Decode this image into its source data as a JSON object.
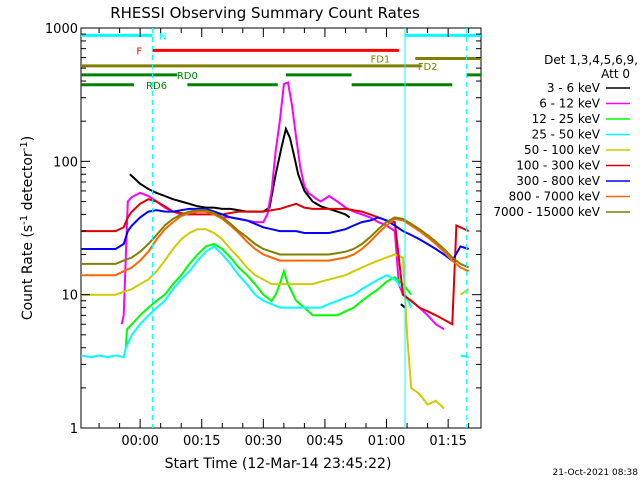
{
  "chart_data": {
    "type": "line",
    "title": "RHESSI Observing Summary Count Rates",
    "xlabel": "Start Time (12-Mar-14 23:45:22)",
    "ylabel_main": "Count Rate (s",
    "ylabel_sup": "-1",
    "ylabel_tail": " detector",
    "ylabel_close": ")",
    "x_range_minutes": [
      -14.4,
      83.0
    ],
    "ylim": [
      1,
      1000
    ],
    "y_scale": "log",
    "x_ticks": [
      {
        "label": "00:00",
        "minute": 0
      },
      {
        "label": "00:15",
        "minute": 15
      },
      {
        "label": "00:30",
        "minute": 30
      },
      {
        "label": "00:45",
        "minute": 45
      },
      {
        "label": "01:00",
        "minute": 60
      },
      {
        "label": "01:15",
        "minute": 75
      }
    ],
    "y_ticks": [
      {
        "label": "1",
        "value": 1
      },
      {
        "label": "10",
        "value": 10
      },
      {
        "label": "100",
        "value": 100
      },
      {
        "label": "1000",
        "value": 1000
      }
    ],
    "legend": {
      "header1": "Det 1,3,4,5,6,9,",
      "header2": "Att 0",
      "entries": [
        {
          "label": "3 - 6 keV",
          "color": "#000000"
        },
        {
          "label": "6 - 12 keV",
          "color": "#ff00ff"
        },
        {
          "label": "12 - 25 keV",
          "color": "#00ff00"
        },
        {
          "label": "25 - 50 keV",
          "color": "#00ffff"
        },
        {
          "label": "50 - 100 keV",
          "color": "#cccc00"
        },
        {
          "label": "100 - 300 keV",
          "color": "#dd0000"
        },
        {
          "label": "300 - 800 keV",
          "color": "#0000ff"
        },
        {
          "label": "800 - 7000 keV",
          "color": "#ff6600"
        },
        {
          "label": "7000 - 15000 keV",
          "color": "#808000"
        }
      ]
    },
    "series": [
      {
        "name": "3 - 6 keV",
        "color": "#000000",
        "x": [
          -3.2,
          -2.5,
          -1.5,
          0,
          2,
          4,
          6,
          8,
          10,
          12,
          14,
          16,
          18,
          20,
          22,
          24,
          26,
          28,
          30,
          31.5,
          33,
          34.5,
          35.5,
          36.5,
          37.5,
          38.5,
          40,
          42,
          44,
          46,
          48,
          50,
          51
        ],
        "y": [
          null,
          80,
          75,
          68,
          62,
          58,
          55,
          52,
          50,
          48,
          46,
          45,
          45,
          44,
          44,
          43,
          42,
          42,
          42,
          45,
          80,
          130,
          175,
          150,
          110,
          80,
          60,
          50,
          46,
          44,
          42,
          40,
          38
        ]
      },
      {
        "name": "3 - 6 keV (late)",
        "color": "#000000",
        "x": [
          62.5,
          63.5,
          64.5
        ],
        "y": [
          null,
          8.5,
          8
        ]
      },
      {
        "name": "6 - 12 keV",
        "color": "#ff00ff",
        "x": [
          -12,
          -10,
          -8,
          -6,
          -4.5,
          -4,
          -3,
          -2,
          0,
          2,
          4,
          6,
          8,
          10,
          12,
          14,
          16,
          18,
          20,
          22,
          24,
          26,
          28,
          30,
          31,
          32,
          33,
          34,
          35,
          36,
          37,
          38,
          39,
          40,
          41,
          42,
          43,
          44,
          46,
          48,
          50,
          52,
          54,
          56,
          58,
          60,
          62,
          63,
          64,
          66,
          68,
          70,
          72,
          74
        ],
        "y": [
          null,
          null,
          null,
          null,
          6,
          7,
          50,
          54,
          58,
          55,
          50,
          45,
          42,
          40,
          40,
          42,
          42,
          40,
          38,
          38,
          37,
          36,
          35,
          35,
          40,
          60,
          120,
          200,
          380,
          390,
          260,
          150,
          90,
          65,
          58,
          55,
          52,
          50,
          55,
          50,
          45,
          42,
          40,
          38,
          35,
          33,
          30,
          12,
          10,
          9,
          8,
          7,
          6,
          5.5
        ]
      },
      {
        "name": "12 - 25 keV",
        "color": "#00ff00",
        "x": [
          -3.5,
          -3.2,
          -2,
          0,
          2,
          4,
          6,
          8,
          10,
          12,
          14,
          16,
          18,
          20,
          22,
          24,
          26,
          28,
          30,
          32,
          33,
          34,
          35,
          36,
          38,
          40,
          42,
          44,
          46,
          48,
          50,
          52,
          54,
          56,
          58,
          60,
          62,
          64,
          66
        ],
        "y": [
          4,
          5.5,
          6,
          7,
          8,
          9,
          10,
          12,
          14,
          17,
          20,
          23,
          24,
          22,
          19,
          16,
          14,
          12,
          10,
          9,
          10,
          12,
          15,
          12,
          9,
          8,
          7,
          7,
          7,
          7,
          7.5,
          8,
          9,
          10,
          11,
          12.5,
          13.5,
          12,
          10
        ]
      },
      {
        "name": "25 - 50 keV",
        "color": "#00ffff",
        "x": [
          -14.4,
          -12,
          -10,
          -8,
          -6,
          -4,
          -3.5,
          -2,
          0,
          2,
          4,
          6,
          8,
          10,
          12,
          14,
          16,
          18,
          20,
          22,
          24,
          26,
          28,
          30,
          32,
          34,
          36,
          38,
          40,
          42,
          44,
          46,
          48,
          50,
          52,
          54,
          56,
          58,
          60,
          62,
          64,
          66,
          68,
          70,
          72,
          74,
          76,
          78,
          80
        ],
        "y": [
          3.5,
          3.4,
          3.5,
          3.4,
          3.5,
          3.4,
          4,
          5,
          6,
          7,
          8,
          9,
          11,
          13,
          15,
          18,
          21,
          23,
          20,
          17,
          14,
          12,
          10,
          9,
          8.5,
          8,
          8,
          8,
          8,
          8,
          8,
          8.5,
          9,
          9.5,
          10,
          11,
          12,
          13,
          14,
          13,
          11,
          8,
          null,
          null,
          null,
          null,
          null,
          3.5,
          3.4
        ]
      },
      {
        "name": "50 - 100 keV",
        "color": "#cccc00",
        "x": [
          -14.4,
          -12,
          -10,
          -8,
          -6,
          -4,
          -2,
          0,
          2,
          4,
          6,
          8,
          10,
          12,
          14,
          16,
          18,
          20,
          22,
          24,
          26,
          28,
          30,
          32,
          34,
          36,
          38,
          40,
          42,
          44,
          46,
          48,
          50,
          52,
          54,
          56,
          58,
          60,
          62,
          64,
          65,
          66,
          68,
          70,
          72,
          74,
          76,
          78,
          80
        ],
        "y": [
          10,
          10,
          10,
          10,
          10,
          10.5,
          11,
          12,
          13,
          15,
          18,
          22,
          26,
          29,
          31,
          31,
          29,
          26,
          22,
          19,
          16,
          14,
          13,
          12,
          12,
          12,
          12,
          12,
          12,
          12.5,
          13,
          13.5,
          14,
          15,
          16,
          17,
          18,
          19,
          20,
          19,
          5,
          2,
          1.8,
          1.5,
          1.6,
          1.4,
          null,
          10,
          11
        ]
      },
      {
        "name": "100 - 300 keV",
        "color": "#dd0000",
        "x": [
          -14.4,
          -12,
          -10,
          -8,
          -6,
          -4,
          -3,
          -2,
          0,
          2,
          4,
          6,
          8,
          10,
          12,
          14,
          16,
          18,
          20,
          22,
          24,
          26,
          28,
          30,
          32,
          34,
          36,
          38,
          40,
          42,
          44,
          46,
          48,
          50,
          52,
          54,
          56,
          58,
          60,
          62,
          64,
          66,
          68,
          70,
          72,
          74,
          76,
          77,
          78,
          80
        ],
        "y": [
          30,
          30,
          30,
          30,
          30,
          32,
          38,
          42,
          48,
          52,
          50,
          46,
          42,
          41,
          40,
          40,
          40,
          40,
          40,
          41,
          42,
          42,
          42,
          42,
          43,
          44,
          46,
          48,
          45,
          44,
          44,
          44,
          44,
          44,
          43,
          42,
          40,
          38,
          36,
          35,
          10,
          9,
          8,
          7.5,
          7,
          6.5,
          6,
          33,
          32,
          30
        ]
      },
      {
        "name": "300 - 800 keV",
        "color": "#0000ff",
        "x": [
          -14.4,
          -12,
          -10,
          -8,
          -6,
          -4,
          -3,
          -2,
          0,
          2,
          4,
          6,
          8,
          10,
          12,
          14,
          16,
          18,
          20,
          22,
          24,
          26,
          28,
          30,
          32,
          34,
          36,
          38,
          40,
          42,
          44,
          46,
          48,
          50,
          52,
          54,
          56,
          58,
          60,
          62,
          64,
          66,
          68,
          70,
          72,
          74,
          76,
          78,
          80
        ],
        "y": [
          22,
          22,
          22,
          22,
          22,
          24,
          30,
          33,
          38,
          42,
          43,
          42,
          42,
          43,
          44,
          44,
          44,
          42,
          40,
          38,
          37,
          36,
          34,
          32,
          31,
          30,
          30,
          30,
          29,
          29,
          29,
          29,
          30,
          31,
          33,
          35,
          36,
          38,
          36,
          33,
          30,
          28,
          26,
          24,
          22,
          20,
          18,
          23,
          22
        ]
      },
      {
        "name": "800 - 7000 keV",
        "color": "#ff6600",
        "x": [
          -14.4,
          -12,
          -10,
          -8,
          -6,
          -4,
          -2,
          0,
          2,
          4,
          6,
          8,
          10,
          12,
          14,
          16,
          18,
          20,
          22,
          24,
          26,
          28,
          30,
          32,
          34,
          36,
          38,
          40,
          42,
          44,
          46,
          48,
          50,
          52,
          54,
          56,
          58,
          60,
          62,
          64,
          66,
          68,
          70,
          72,
          74,
          76,
          78,
          80
        ],
        "y": [
          14,
          14,
          14,
          14,
          14,
          15,
          16,
          18,
          21,
          26,
          31,
          35,
          39,
          41,
          42,
          42,
          40,
          37,
          33,
          29,
          25,
          22,
          20,
          19,
          18,
          18,
          18,
          18,
          18,
          18,
          18,
          18.5,
          19,
          20,
          22,
          25,
          29,
          33,
          37,
          36,
          33,
          30,
          27,
          24,
          21,
          18,
          16,
          15
        ]
      },
      {
        "name": "7000 - 15000 keV",
        "color": "#808000",
        "x": [
          -14.4,
          -12,
          -10,
          -8,
          -6,
          -4,
          -2,
          0,
          2,
          4,
          6,
          8,
          10,
          12,
          14,
          16,
          18,
          20,
          22,
          24,
          26,
          28,
          30,
          32,
          34,
          36,
          38,
          40,
          42,
          44,
          46,
          48,
          50,
          52,
          54,
          56,
          58,
          60,
          62,
          64,
          66,
          68,
          70,
          72,
          74,
          76,
          78,
          80
        ],
        "y": [
          17,
          17,
          17,
          17,
          17,
          18,
          19,
          21,
          24,
          28,
          33,
          37,
          40,
          42,
          43,
          43,
          41,
          38,
          34,
          30,
          27,
          24,
          22,
          21,
          20,
          20,
          20,
          20,
          20,
          20,
          20,
          20.5,
          21,
          22,
          24,
          27,
          31,
          35,
          38,
          37,
          34,
          31,
          28,
          25,
          22,
          19,
          17,
          16
        ]
      }
    ],
    "flag_bars": [
      {
        "label": "N",
        "color": "#00ffff",
        "y_value": 880,
        "segments": [
          [
            -14.4,
            3.0
          ],
          [
            64.5,
            83.0
          ]
        ],
        "label_at": 5.5
      },
      {
        "label": "F",
        "color": "#ff0000",
        "y_value": 680,
        "segments": [
          [
            3.0,
            63.0
          ]
        ],
        "label_at": -0.2
      },
      {
        "label": "FD1",
        "color": "#808000",
        "y_value": 590,
        "segments": [
          [
            67.0,
            83.0
          ]
        ],
        "label_at": 58.5
      },
      {
        "label": "FD2",
        "color": "#808000",
        "y_value": 520,
        "segments": [
          [
            -14.4,
            68.5
          ]
        ],
        "label_at": 70.0
      },
      {
        "label": "RD0",
        "color": "#008000",
        "y_value": 445,
        "segments": [
          [
            -14.4,
            9.0
          ],
          [
            35.5,
            51.5
          ],
          [
            79.5,
            83.0
          ]
        ],
        "label_at": 11.5
      },
      {
        "label": "RD6",
        "color": "#008000",
        "y_value": 375,
        "segments": [
          [
            -14.4,
            -1.5
          ],
          [
            11.5,
            33.5
          ],
          [
            51.5,
            76.0
          ]
        ],
        "label_at": 4.0
      }
    ],
    "vertical_markers": [
      {
        "minute": 3.0,
        "color": "#00ffff",
        "style": "dashed"
      },
      {
        "minute": 64.5,
        "color": "#00ffff",
        "style": "solid"
      },
      {
        "minute": 79.5,
        "color": "#00ffff",
        "style": "dashed"
      }
    ],
    "footer_timestamp": "21-Oct-2021 08:38"
  }
}
